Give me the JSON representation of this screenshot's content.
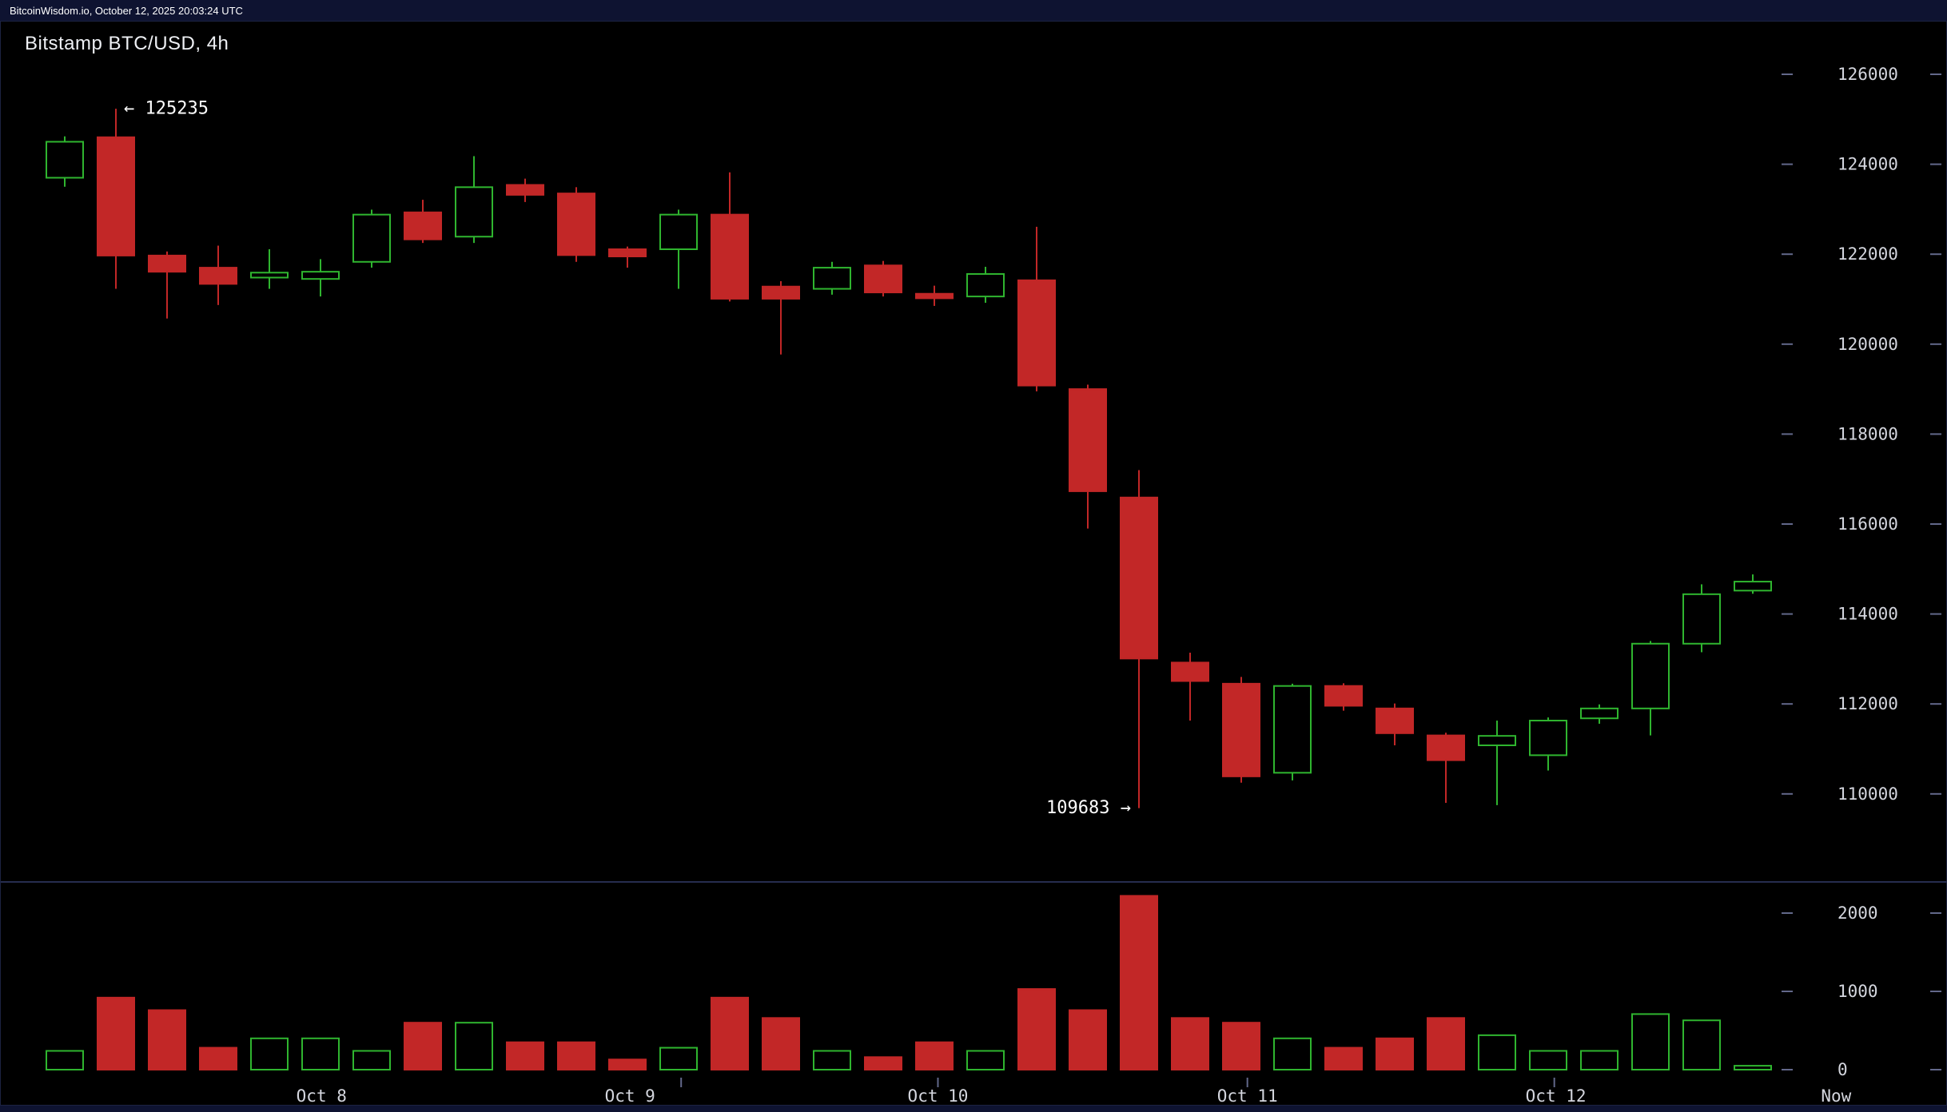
{
  "top_bar": {
    "text": "BitcoinWisdom.io, October 12, 2025 20:03:24 UTC"
  },
  "chart": {
    "title": "Bitstamp BTC/USD, 4h",
    "colors": {
      "up": "#2fb52f",
      "down": "#c22727",
      "background": "#000000",
      "axis_text": "#d4d6de",
      "tick": "#62688a",
      "divider": "#262d4f",
      "annotation": "#ffffff",
      "bar": "#0e1331"
    }
  },
  "chart_data": {
    "type": "candlestick",
    "title": "Bitstamp BTC/USD, 4h",
    "exchange": "Bitstamp",
    "pair": "BTC/USD",
    "interval": "4h",
    "legend_position": "none",
    "grid": false,
    "price_axis": {
      "ticks": [
        126000,
        124000,
        122000,
        120000,
        118000,
        116000,
        114000,
        112000,
        110000
      ],
      "range": [
        109000,
        126500
      ]
    },
    "volume_axis": {
      "ticks": [
        2000,
        1000,
        0
      ],
      "range": [
        0,
        2400
      ]
    },
    "x_axis": {
      "labels": [
        {
          "label": "Oct 8",
          "index": 5.02
        },
        {
          "label": "Oct 9",
          "index": 11.05
        },
        {
          "label": "Oct 10",
          "index": 17.07
        },
        {
          "label": "Oct 11",
          "index": 23.12
        },
        {
          "label": "Oct 12",
          "index": 29.15
        },
        {
          "label": "Now",
          "index": 34.63
        }
      ],
      "day_tick_indices": [
        12.05,
        17.07,
        23.12,
        29.12
      ]
    },
    "annotations": {
      "high": {
        "label": "← 125235",
        "value": 125235,
        "candle_index": 1
      },
      "low": {
        "label": "109683 →",
        "value": 109683,
        "candle_index": 21
      }
    },
    "candle_format": [
      "open",
      "high",
      "low",
      "close",
      "volume"
    ],
    "candles": [
      [
        123700,
        124620,
        123500,
        124500,
        240
      ],
      [
        124600,
        125235,
        121230,
        121970,
        920
      ],
      [
        121970,
        122060,
        120570,
        121610,
        760
      ],
      [
        121700,
        122190,
        120870,
        121340,
        280
      ],
      [
        121480,
        122110,
        121230,
        121590,
        400
      ],
      [
        121450,
        121890,
        121060,
        121610,
        400
      ],
      [
        121830,
        122990,
        121700,
        122880,
        240
      ],
      [
        122930,
        123210,
        122250,
        122330,
        600
      ],
      [
        122390,
        124180,
        122250,
        123490,
        600
      ],
      [
        123540,
        123680,
        123160,
        123320,
        350
      ],
      [
        123350,
        123490,
        121830,
        121980,
        350
      ],
      [
        122110,
        122170,
        121700,
        121950,
        130
      ],
      [
        122110,
        122990,
        121230,
        122880,
        280
      ],
      [
        122880,
        123820,
        120950,
        121010,
        920
      ],
      [
        121280,
        121400,
        119770,
        121010,
        660
      ],
      [
        121230,
        121830,
        121100,
        121700,
        240
      ],
      [
        121750,
        121850,
        121060,
        121150,
        160
      ],
      [
        121120,
        121300,
        120850,
        121020,
        350
      ],
      [
        121060,
        121720,
        120920,
        121560,
        240
      ],
      [
        121420,
        122610,
        118950,
        119080,
        1030
      ],
      [
        119000,
        119100,
        115900,
        116730,
        760
      ],
      [
        116590,
        117200,
        109683,
        113010,
        2220
      ],
      [
        112920,
        113140,
        111630,
        112510,
        660
      ],
      [
        112450,
        112600,
        110250,
        110390,
        600
      ],
      [
        110470,
        112450,
        110300,
        112400,
        400
      ],
      [
        112400,
        112460,
        111850,
        111960,
        280
      ],
      [
        111900,
        112010,
        111080,
        111350,
        400
      ],
      [
        111300,
        111360,
        109800,
        110750,
        660
      ],
      [
        111080,
        111630,
        109750,
        111290,
        440
      ],
      [
        110860,
        111700,
        110520,
        111630,
        240
      ],
      [
        111680,
        111990,
        111560,
        111900,
        240
      ],
      [
        111900,
        113400,
        111300,
        113340,
        710
      ],
      [
        113340,
        114660,
        113150,
        114440,
        630
      ],
      [
        114520,
        114880,
        114450,
        114720,
        50
      ]
    ]
  }
}
